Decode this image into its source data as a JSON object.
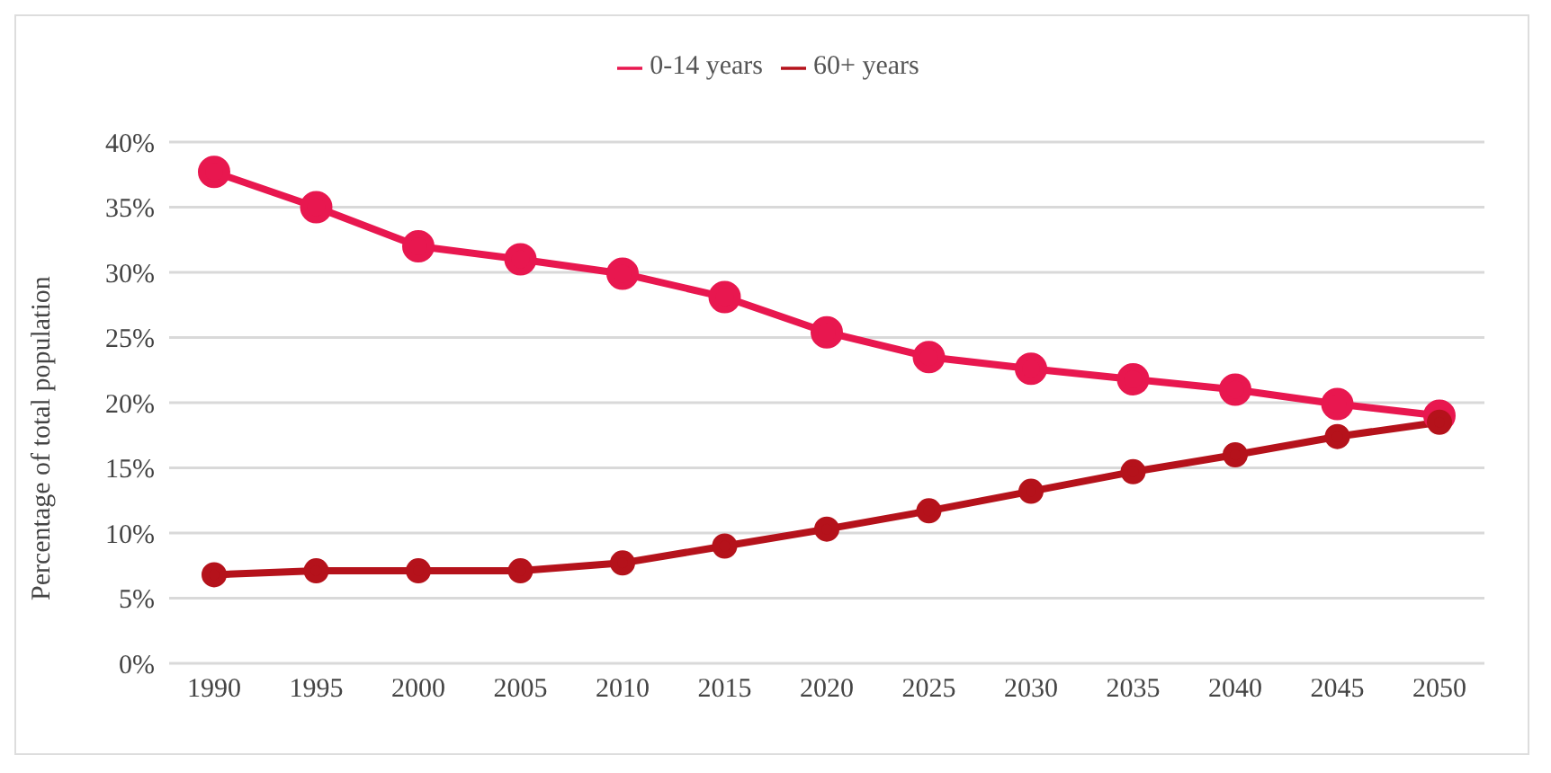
{
  "chart_data": {
    "type": "line",
    "ylabel": "Percentage of total population",
    "categories": [
      "1990",
      "1995",
      "2000",
      "2005",
      "2010",
      "2015",
      "2020",
      "2025",
      "2030",
      "2035",
      "2040",
      "2045",
      "2050"
    ],
    "series": [
      {
        "name": "0-14 years",
        "color": "#e8174f",
        "values": [
          37.7,
          35.0,
          32.0,
          31.0,
          29.9,
          28.1,
          25.4,
          23.5,
          22.6,
          21.8,
          21.0,
          19.9,
          19.0
        ]
      },
      {
        "name": "60+ years",
        "color": "#b5121b",
        "values": [
          6.8,
          7.1,
          7.1,
          7.1,
          7.7,
          9.0,
          10.3,
          11.7,
          13.2,
          14.7,
          16.0,
          17.4,
          18.5
        ]
      }
    ],
    "ylim": [
      0,
      40
    ],
    "yticks": [
      {
        "value": 0,
        "label": "0%"
      },
      {
        "value": 5,
        "label": "5%"
      },
      {
        "value": 10,
        "label": "10%"
      },
      {
        "value": 15,
        "label": "15%"
      },
      {
        "value": 20,
        "label": "20%"
      },
      {
        "value": 25,
        "label": "25%"
      },
      {
        "value": 30,
        "label": "30%"
      },
      {
        "value": 35,
        "label": "35%"
      },
      {
        "value": 40,
        "label": "40%"
      }
    ],
    "grid": "y",
    "legend": "top",
    "marker": "circle",
    "line_style": "solid"
  }
}
